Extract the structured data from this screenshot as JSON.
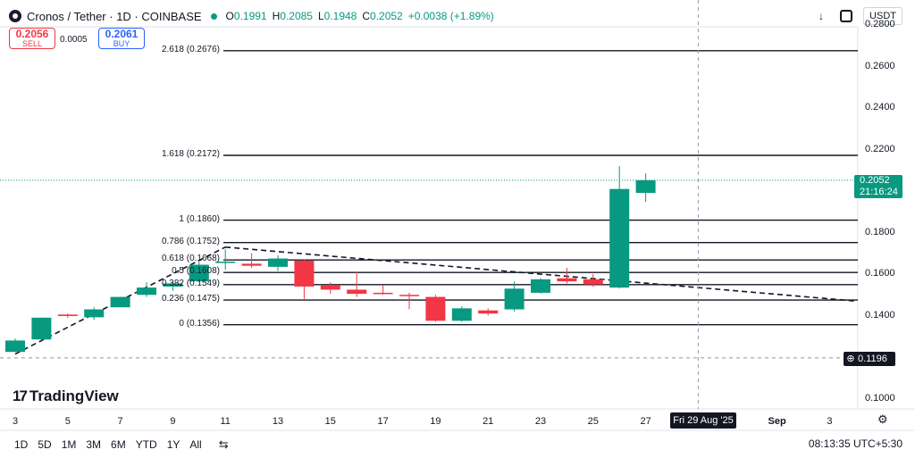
{
  "header": {
    "title": "Cronos / Tether · 1D · COINBASE",
    "ohlc": [
      {
        "k": "O",
        "v": "0.1991"
      },
      {
        "k": "H",
        "v": "0.2085"
      },
      {
        "k": "L",
        "v": "0.1948"
      },
      {
        "k": "C",
        "v": "0.2052"
      }
    ],
    "change": "+0.0038 (+1.89%)",
    "currency": "USDT"
  },
  "trade": {
    "sell_price": "0.2056",
    "sell_label": "SELL",
    "buy_price": "0.2061",
    "buy_label": "BUY",
    "spread": "0.0005"
  },
  "price_tag": {
    "price": "0.2052",
    "countdown": "21:16:24"
  },
  "crosshair": {
    "price": "0.1196",
    "date": "Fri 29 Aug '25"
  },
  "brand": "TradingView",
  "timeframes": [
    "1D",
    "5D",
    "1M",
    "3M",
    "6M",
    "YTD",
    "1Y",
    "All"
  ],
  "clock": "08:13:35 UTC+5:30",
  "colors": {
    "up": "#089981",
    "down": "#f23645",
    "price_line": "#089981"
  },
  "chart_data": {
    "type": "candlestick",
    "y_axis_ticks": [
      "0.2800",
      "0.2600",
      "0.2400",
      "0.2200",
      "0.2000",
      "0.1800",
      "0.1600",
      "0.1400",
      "0.1200",
      "0.1000"
    ],
    "x_axis_ticks": [
      "3",
      "5",
      "7",
      "9",
      "11",
      "13",
      "15",
      "17",
      "19",
      "21",
      "23",
      "25",
      "27",
      "Sep",
      "3"
    ],
    "candles": [
      {
        "date": "Aug 3",
        "o": 0.1225,
        "h": 0.129,
        "l": 0.1225,
        "c": 0.128
      },
      {
        "date": "Aug 4",
        "o": 0.1285,
        "h": 0.139,
        "l": 0.128,
        "c": 0.139
      },
      {
        "date": "Aug 5",
        "o": 0.1405,
        "h": 0.141,
        "l": 0.139,
        "c": 0.1398
      },
      {
        "date": "Aug 6",
        "o": 0.1392,
        "h": 0.144,
        "l": 0.138,
        "c": 0.143
      },
      {
        "date": "Aug 7",
        "o": 0.144,
        "h": 0.149,
        "l": 0.144,
        "c": 0.149
      },
      {
        "date": "Aug 8",
        "o": 0.15,
        "h": 0.156,
        "l": 0.149,
        "c": 0.1535
      },
      {
        "date": "Aug 9",
        "o": 0.154,
        "h": 0.1565,
        "l": 0.152,
        "c": 0.1555
      },
      {
        "date": "Aug 10",
        "o": 0.1565,
        "h": 0.166,
        "l": 0.156,
        "c": 0.1645
      },
      {
        "date": "Aug 11",
        "o": 0.1655,
        "h": 0.172,
        "l": 0.162,
        "c": 0.166
      },
      {
        "date": "Aug 12",
        "o": 0.165,
        "h": 0.17,
        "l": 0.163,
        "c": 0.164
      },
      {
        "date": "Aug 13",
        "o": 0.1635,
        "h": 0.169,
        "l": 0.1615,
        "c": 0.1675
      },
      {
        "date": "Aug 14",
        "o": 0.1665,
        "h": 0.167,
        "l": 0.148,
        "c": 0.154
      },
      {
        "date": "Aug 15",
        "o": 0.1545,
        "h": 0.156,
        "l": 0.1505,
        "c": 0.1525
      },
      {
        "date": "Aug 16",
        "o": 0.1525,
        "h": 0.161,
        "l": 0.149,
        "c": 0.1505
      },
      {
        "date": "Aug 17",
        "o": 0.151,
        "h": 0.1545,
        "l": 0.15,
        "c": 0.1505
      },
      {
        "date": "Aug 18",
        "o": 0.15,
        "h": 0.151,
        "l": 0.143,
        "c": 0.1495
      },
      {
        "date": "Aug 19",
        "o": 0.149,
        "h": 0.15,
        "l": 0.137,
        "c": 0.1375
      },
      {
        "date": "Aug 20",
        "o": 0.1375,
        "h": 0.1445,
        "l": 0.137,
        "c": 0.1435
      },
      {
        "date": "Aug 21",
        "o": 0.1425,
        "h": 0.1435,
        "l": 0.14,
        "c": 0.141
      },
      {
        "date": "Aug 22",
        "o": 0.143,
        "h": 0.1565,
        "l": 0.142,
        "c": 0.153
      },
      {
        "date": "Aug 23",
        "o": 0.151,
        "h": 0.158,
        "l": 0.1505,
        "c": 0.1575
      },
      {
        "date": "Aug 24",
        "o": 0.158,
        "h": 0.163,
        "l": 0.1555,
        "c": 0.1565
      },
      {
        "date": "Aug 25",
        "o": 0.1575,
        "h": 0.16,
        "l": 0.154,
        "c": 0.155
      },
      {
        "date": "Aug 26",
        "o": 0.1535,
        "h": 0.212,
        "l": 0.153,
        "c": 0.201
      },
      {
        "date": "Aug 27",
        "o": 0.1991,
        "h": 0.2085,
        "l": 0.1948,
        "c": 0.2052
      }
    ],
    "fib_levels": [
      {
        "label": "2.618 (0.2676)",
        "value": 0.2676
      },
      {
        "label": "1.618 (0.2172)",
        "value": 0.2172
      },
      {
        "label": "1 (0.1860)",
        "value": 0.186
      },
      {
        "label": "0.786 (0.1752)",
        "value": 0.1752
      },
      {
        "label": "0.618 (0.1668)",
        "value": 0.1668
      },
      {
        "label": "0.5 (0.1608)",
        "value": 0.1608
      },
      {
        "label": "0.382 (0.1549)",
        "value": 0.1549
      },
      {
        "label": "0.236 (0.1475)",
        "value": 0.1475
      },
      {
        "label": "0 (0.1356)",
        "value": 0.1356
      }
    ],
    "trendlines": [
      {
        "from": {
          "date": "Aug 3",
          "y": 0.1215
        },
        "to": {
          "date": "Aug 11",
          "y": 0.173
        }
      },
      {
        "from": {
          "date": "Aug 11",
          "y": 0.173
        },
        "to": {
          "date": "Sep 4",
          "y": 0.147
        }
      }
    ],
    "current_price": 0.2052,
    "crosshair": {
      "date": "Aug 29",
      "y": 0.1196
    }
  }
}
